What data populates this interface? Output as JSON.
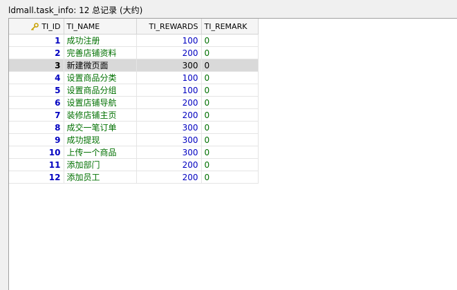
{
  "window": {
    "title": "ldmall.task_info: 12 总记录 (大约)"
  },
  "grid": {
    "columns": [
      {
        "label": "TI_ID",
        "icon": "primary-key-icon"
      },
      {
        "label": "TI_NAME"
      },
      {
        "label": "TI_REWARDS"
      },
      {
        "label": "TI_REMARK"
      }
    ],
    "selected_row": 2,
    "rows": [
      {
        "id": "1",
        "name": "成功注册",
        "rewards": "100",
        "remark": "0"
      },
      {
        "id": "2",
        "name": "完善店铺资料",
        "rewards": "200",
        "remark": "0"
      },
      {
        "id": "3",
        "name": "新建微页面",
        "rewards": "300",
        "remark": "0"
      },
      {
        "id": "4",
        "name": "设置商品分类",
        "rewards": "100",
        "remark": "0"
      },
      {
        "id": "5",
        "name": "设置商品分组",
        "rewards": "100",
        "remark": "0"
      },
      {
        "id": "6",
        "name": "设置店铺导航",
        "rewards": "200",
        "remark": "0"
      },
      {
        "id": "7",
        "name": "装修店铺主页",
        "rewards": "200",
        "remark": "0"
      },
      {
        "id": "8",
        "name": "成交一笔订单",
        "rewards": "300",
        "remark": "0"
      },
      {
        "id": "9",
        "name": "成功提现",
        "rewards": "300",
        "remark": "0"
      },
      {
        "id": "10",
        "name": "上传一个商品",
        "rewards": "300",
        "remark": "0"
      },
      {
        "id": "11",
        "name": "添加部门",
        "rewards": "200",
        "remark": "0"
      },
      {
        "id": "12",
        "name": "添加员工",
        "rewards": "200",
        "remark": "0"
      }
    ]
  }
}
